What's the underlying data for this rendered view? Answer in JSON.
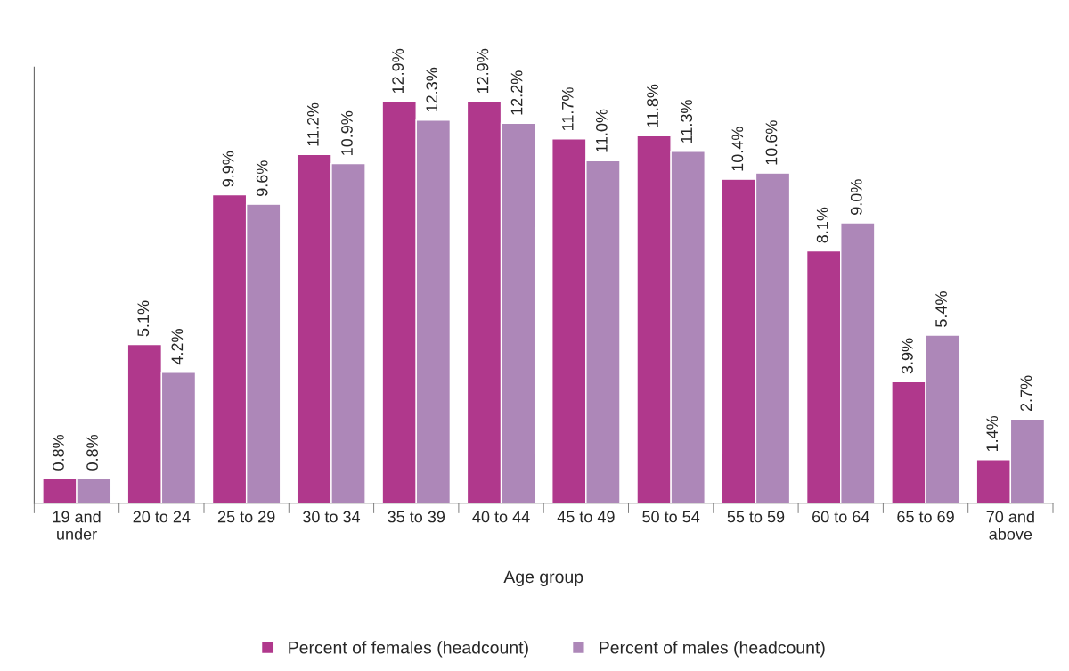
{
  "chart_data": {
    "type": "bar",
    "xlabel": "Age group",
    "categories": [
      "19 and under",
      "20 to 24",
      "25 to 29",
      "30 to 34",
      "35 to 39",
      "40 to 44",
      "45 to 49",
      "50 to 54",
      "55 to 59",
      "60 to 64",
      "65 to 69",
      "70 and above"
    ],
    "series": [
      {
        "name": "Percent of females (headcount)",
        "color": "#b0388c",
        "values": [
          0.8,
          5.1,
          9.9,
          11.2,
          12.9,
          12.9,
          11.7,
          11.8,
          10.4,
          8.1,
          3.9,
          1.4
        ],
        "value_labels": [
          "0.8%",
          "5.1%",
          "9.9%",
          "11.2%",
          "12.9%",
          "12.9%",
          "11.7%",
          "11.8%",
          "10.4%",
          "8.1%",
          "3.9%",
          "1.4%"
        ]
      },
      {
        "name": "Percent of males (headcount)",
        "color": "#ad87b8",
        "values": [
          0.8,
          4.2,
          9.6,
          10.9,
          12.3,
          12.2,
          11.0,
          11.3,
          10.6,
          9.0,
          5.4,
          2.7
        ],
        "value_labels": [
          "0.8%",
          "4.2%",
          "9.6%",
          "10.9%",
          "12.3%",
          "12.2%",
          "11.0%",
          "11.3%",
          "10.6%",
          "9.0%",
          "5.4%",
          "2.7%"
        ]
      }
    ],
    "ylim": [
      0,
      14
    ],
    "legend": "bottom",
    "grid": false
  }
}
